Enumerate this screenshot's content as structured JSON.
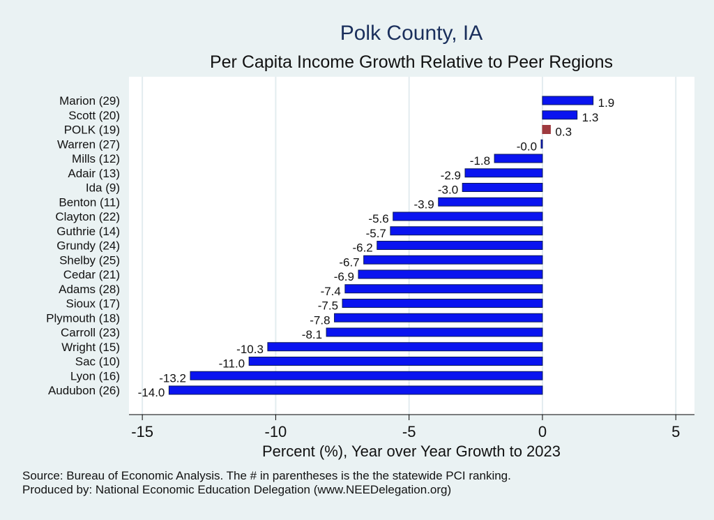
{
  "chart_data": {
    "type": "bar",
    "orientation": "horizontal",
    "title": "Polk County, IA",
    "subtitle": "Per Capita Income Growth Relative to Peer Regions",
    "xlabel": "Percent (%), Year over Year Growth to 2023",
    "ylabel": "",
    "xlim": [
      -15.5,
      5.7
    ],
    "xticks": [
      -15,
      -10,
      -5,
      0,
      5
    ],
    "grid": "vertical",
    "categories": [
      "Marion (29)",
      "Scott (20)",
      "POLK (19)",
      "Warren (27)",
      "Mills (12)",
      "Adair (13)",
      "Ida  (9)",
      "Benton (11)",
      "Clayton (22)",
      "Guthrie (14)",
      "Grundy (24)",
      "Shelby (25)",
      "Cedar (21)",
      "Adams (28)",
      "Sioux (17)",
      "Plymouth (18)",
      "Carroll (23)",
      "Wright (15)",
      "Sac (10)",
      "Lyon (16)",
      "Audubon (26)"
    ],
    "values": [
      1.9,
      1.3,
      0.3,
      -0.05,
      -1.8,
      -2.9,
      -3.0,
      -3.9,
      -5.6,
      -5.7,
      -6.2,
      -6.7,
      -6.9,
      -7.4,
      -7.5,
      -7.8,
      -8.1,
      -10.3,
      -11.0,
      -13.2,
      -14.0
    ],
    "value_labels": [
      "1.9",
      "1.3",
      "0.3",
      "-0.0",
      "-1.8",
      "-2.9",
      "-3.0",
      "-3.9",
      "-5.6",
      "-5.7",
      "-6.2",
      "-6.7",
      "-6.9",
      "-7.4",
      "-7.5",
      "-7.8",
      "-8.1",
      "-10.3",
      "-11.0",
      "-13.2",
      "-14.0"
    ],
    "highlight_index": 2,
    "colors": {
      "bar": "#0a14f0",
      "bar_edge": "#0b1a5a",
      "highlight": "#9e3a3f",
      "grid": "#e3ecef",
      "plot_bg": "#ffffff",
      "page_bg": "#eaf2f3"
    }
  },
  "footnotes": {
    "source": "Source: Bureau of Economic Analysis. The # in parentheses is the the statewide PCI ranking.",
    "produced": "Produced by: National Economic Education Delegation (www.NEEDelegation.org)"
  }
}
